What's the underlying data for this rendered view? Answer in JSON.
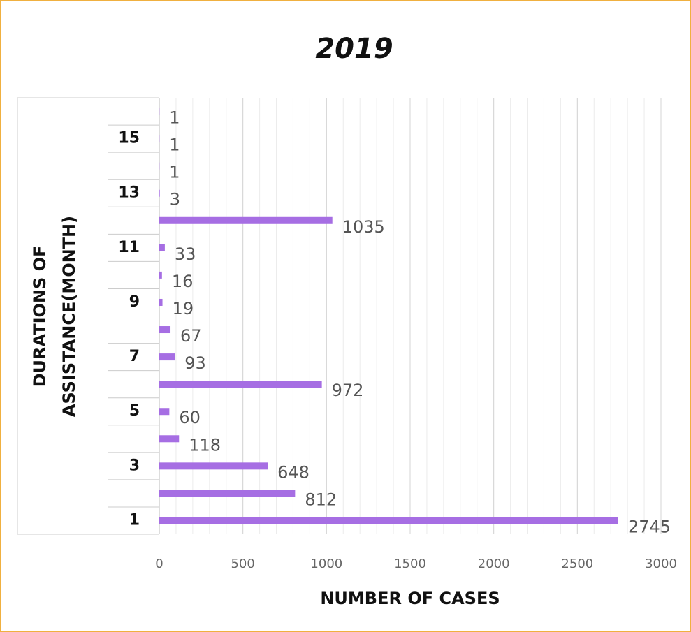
{
  "chart_data": {
    "type": "hbar",
    "title": "2019",
    "y_label": [
      "DURATIONS OF",
      "ASSISTANCE(MONTH)"
    ],
    "x_label": "NUMBER OF CASES",
    "categories": [
      "1",
      null,
      "3",
      null,
      "5",
      null,
      "7",
      null,
      "9",
      null,
      "11",
      null,
      "13",
      null,
      "15",
      null
    ],
    "values": [
      2745,
      812,
      648,
      118,
      60,
      972,
      93,
      67,
      19,
      16,
      33,
      1035,
      3,
      1,
      1,
      1
    ],
    "color": "#a66ee3",
    "xlim": [
      0,
      3000
    ],
    "xticks": [
      0,
      500,
      1000,
      1500,
      2000,
      2500,
      3000
    ],
    "grid": true,
    "minor_grid": true
  }
}
